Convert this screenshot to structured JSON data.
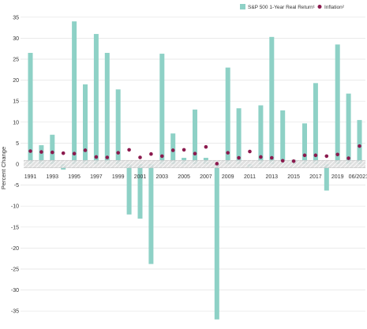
{
  "chart_data": {
    "type": "bar",
    "title": "",
    "ylabel": "Percent Change",
    "xlabel": "",
    "ylim": [
      -37,
      37
    ],
    "yticks": [
      35,
      30,
      25,
      20,
      15,
      10,
      5,
      0,
      -5,
      -10,
      -15,
      -20,
      -25,
      -30,
      -35
    ],
    "grid": true,
    "legend_position": "top-right",
    "categories": [
      "1991",
      "1992",
      "1993",
      "1994",
      "1995",
      "1996",
      "1997",
      "1998",
      "1999",
      "2000",
      "2001",
      "2002",
      "2003",
      "2004",
      "2005",
      "2006",
      "2007",
      "2008",
      "2009",
      "2010",
      "2011",
      "2012",
      "2013",
      "2014",
      "2015",
      "2016",
      "2017",
      "2018",
      "2019",
      "2020",
      "06/2021"
    ],
    "x_tick_labels": [
      "1991",
      "",
      "1993",
      "",
      "1995",
      "",
      "1997",
      "",
      "1999",
      "",
      "2001",
      "",
      "2003",
      "",
      "2005",
      "",
      "2007",
      "",
      "2009",
      "",
      "2011",
      "",
      "2013",
      "",
      "2015",
      "",
      "2017",
      "",
      "2019",
      "",
      "06/2021³"
    ],
    "series": [
      {
        "name": "S&P 500 1-Year Real Return¹",
        "kind": "bar",
        "color": "#8ed1c6",
        "values": [
          26.5,
          4.5,
          7.0,
          -1.3,
          34.0,
          19.0,
          31.0,
          26.5,
          17.8,
          -12.0,
          -13.0,
          -23.8,
          26.3,
          7.3,
          1.5,
          13.0,
          1.5,
          -37.0,
          23.0,
          13.3,
          -0.7,
          14.0,
          30.3,
          12.8,
          1.0,
          9.7,
          19.3,
          -6.3,
          28.5,
          16.8,
          10.5
        ]
      },
      {
        "name": "Inflation²",
        "kind": "point",
        "color": "#8b1a4e",
        "values": [
          3.1,
          2.9,
          2.8,
          2.6,
          2.5,
          3.3,
          1.7,
          1.6,
          2.7,
          3.4,
          1.6,
          2.4,
          1.9,
          3.3,
          3.4,
          2.5,
          4.1,
          0.1,
          2.7,
          1.5,
          3.0,
          1.7,
          1.5,
          0.8,
          0.7,
          2.1,
          2.1,
          1.9,
          2.3,
          1.4,
          4.3
        ]
      }
    ]
  }
}
